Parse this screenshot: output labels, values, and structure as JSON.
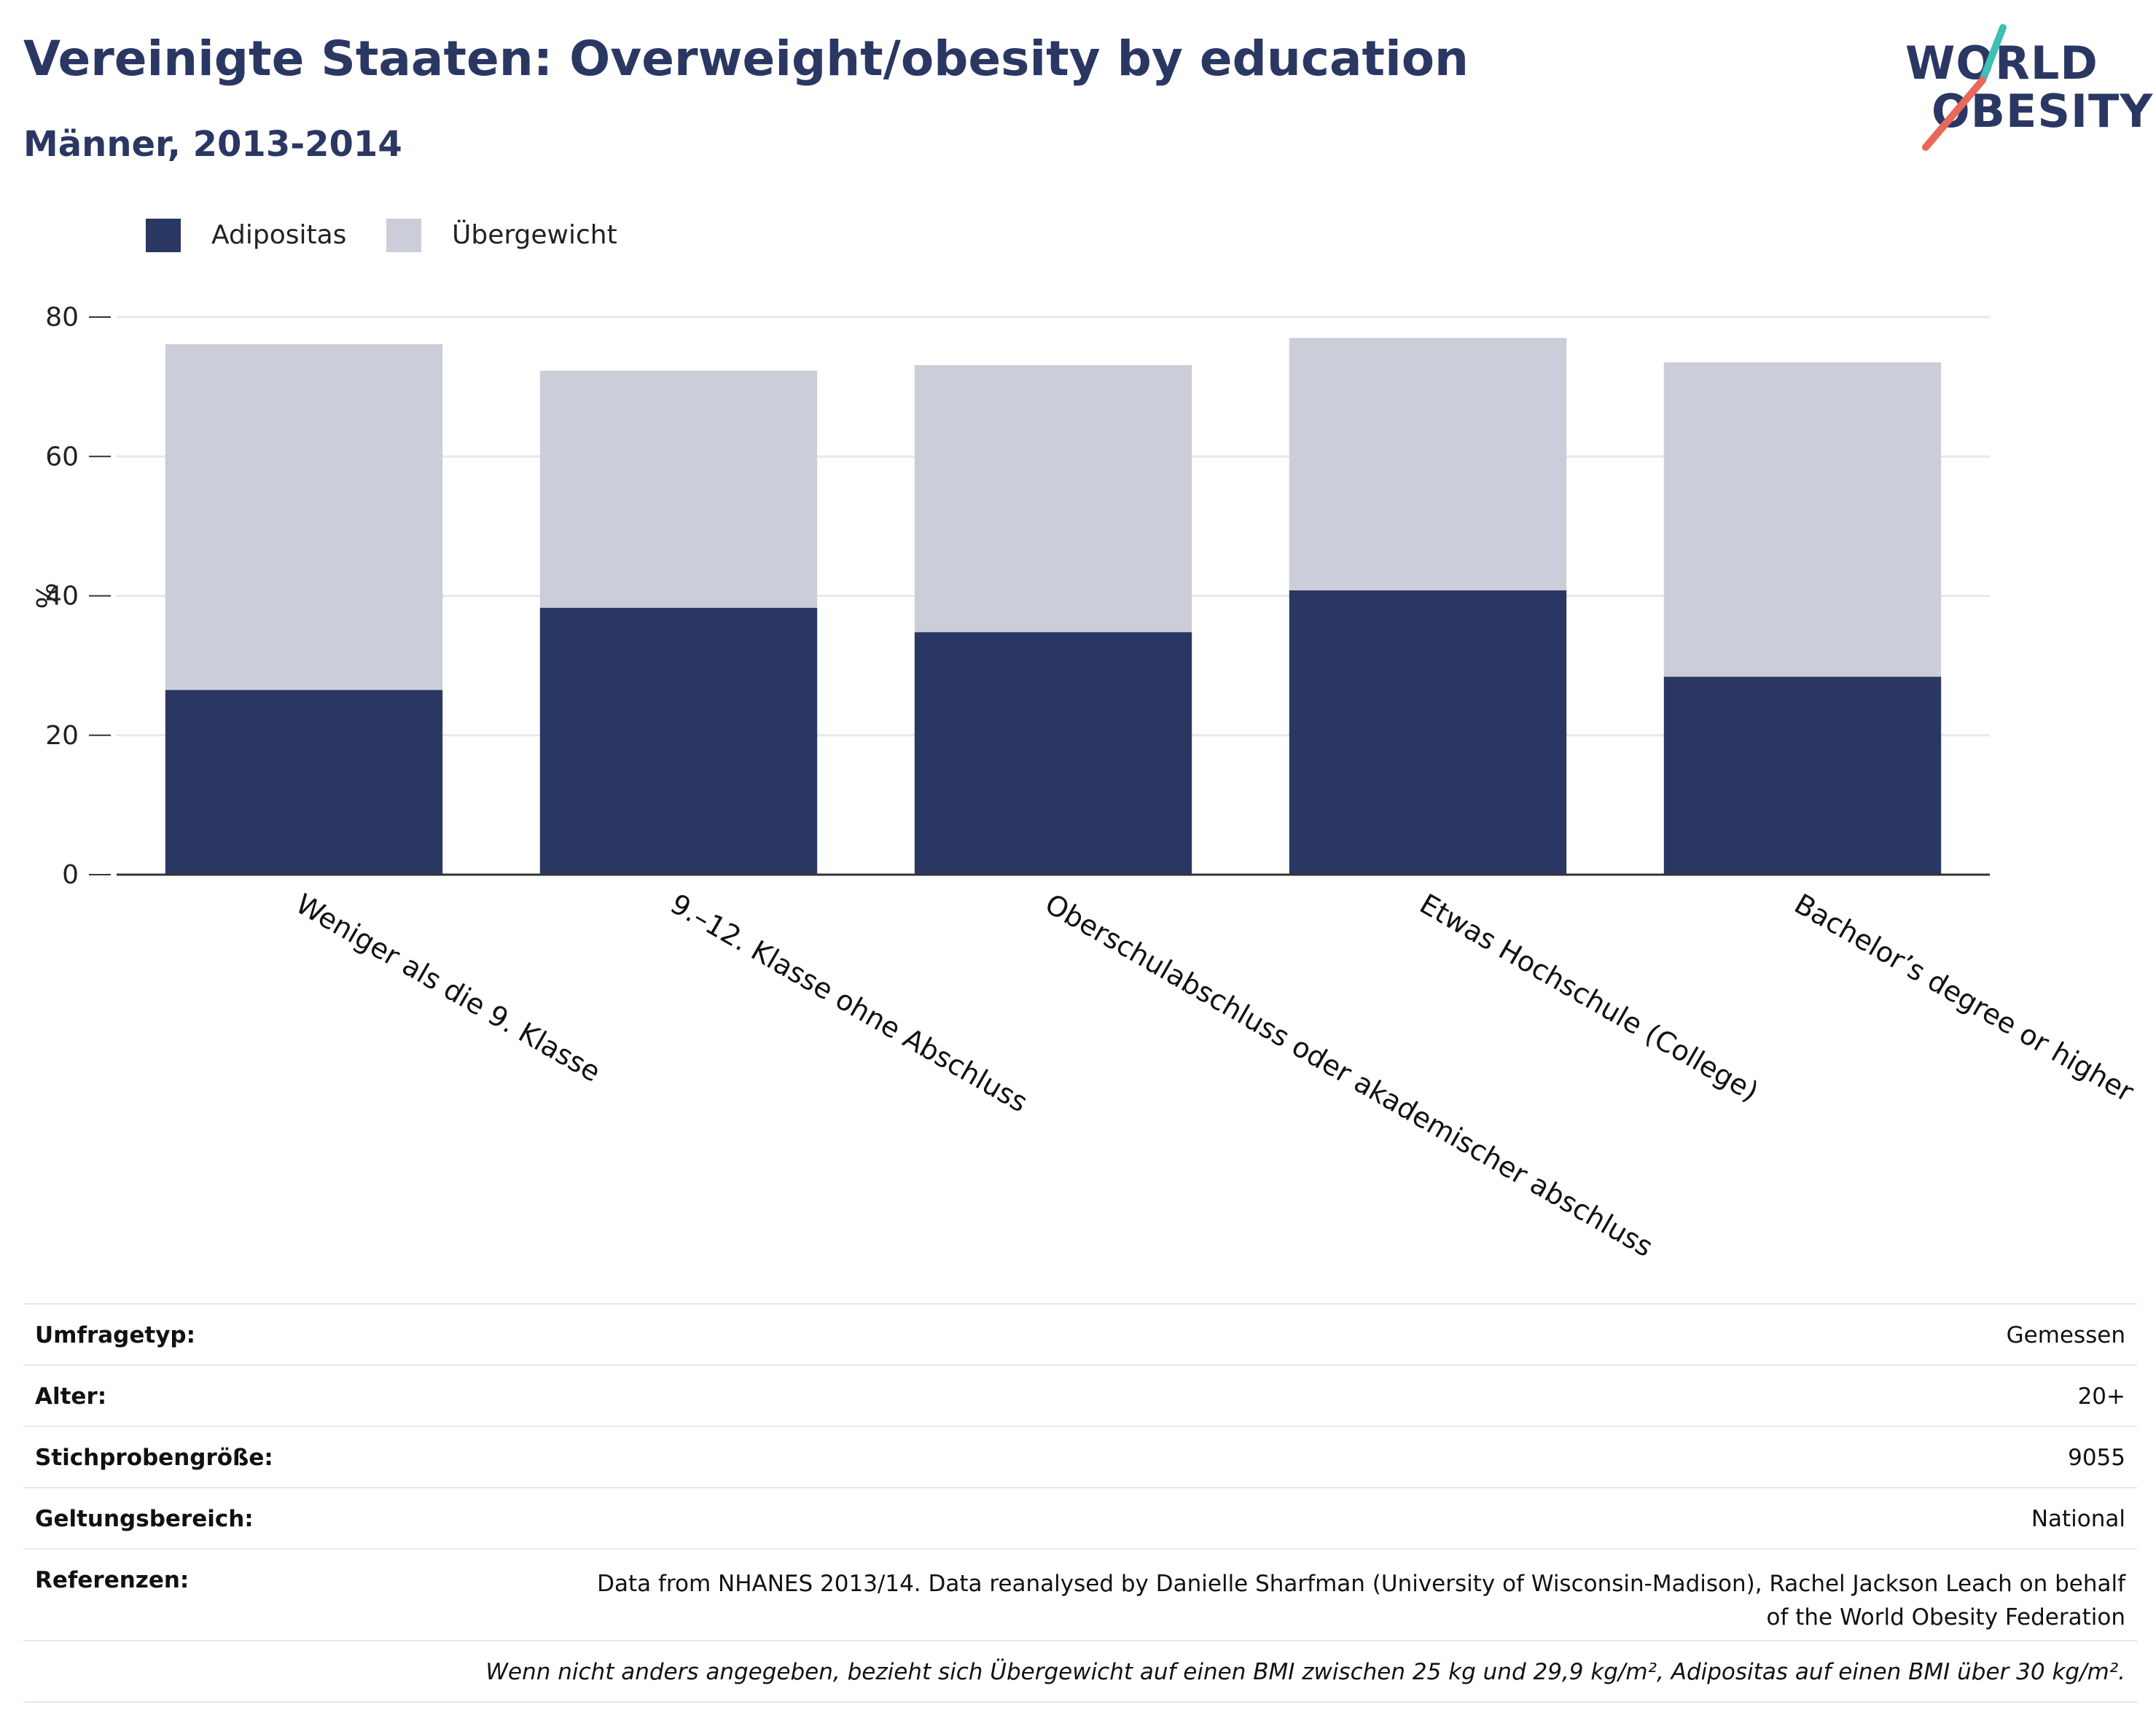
{
  "header": {
    "title": "Vereinigte Staaten: Overweight/obesity by education",
    "subtitle": "Männer, 2013-2014"
  },
  "logo": {
    "line1": "WORLD",
    "line2": "OBESITY",
    "colors": {
      "text": "#2b3763",
      "slash_top": "#3fbfb5",
      "slash_bottom": "#e8685a"
    }
  },
  "colors": {
    "obesity": "#2b3763",
    "overweight": "#cbcdd8",
    "grid": "#e8e8ee",
    "axis": "#333333"
  },
  "chart_data": {
    "type": "bar",
    "stacked": true,
    "categories": [
      "Weniger als die 9. Klasse",
      "9.–12. Klasse ohne Abschluss",
      "Oberschulabschluss oder akademischer abschluss",
      "Etwas Hochschule (College)",
      "Bachelor’s degree or higher"
    ],
    "series": [
      {
        "name": "Adipositas",
        "values": [
          26.5,
          38.3,
          34.8,
          40.8,
          28.4
        ]
      },
      {
        "name": "Übergewicht",
        "values": [
          49.6,
          34.0,
          38.3,
          36.2,
          45.1
        ]
      }
    ],
    "ylabel": "%",
    "xlabel": "",
    "ylim": [
      0,
      80
    ],
    "yticks": [
      0,
      20,
      40,
      60,
      80
    ],
    "grid": true,
    "legend_position": "top-left"
  },
  "info": {
    "rows": [
      {
        "label": "Umfragetyp:",
        "value": "Gemessen"
      },
      {
        "label": "Alter:",
        "value": "20+"
      },
      {
        "label": "Stichprobengröße:",
        "value": "9055"
      },
      {
        "label": "Geltungsbereich:",
        "value": "National"
      }
    ],
    "references": {
      "label": "Referenzen:",
      "value_line1": "Data from NHANES 2013/14. Data reanalysed by Danielle Sharfman (University of Wisconsin-Madison), Rachel Jackson Leach on behalf",
      "value_line2": "of the World Obesity Federation"
    },
    "note": "Wenn nicht anders angegeben, bezieht sich Übergewicht auf einen BMI zwischen 25 kg und 29,9 kg/m², Adipositas auf einen BMI über 30 kg/m²."
  }
}
